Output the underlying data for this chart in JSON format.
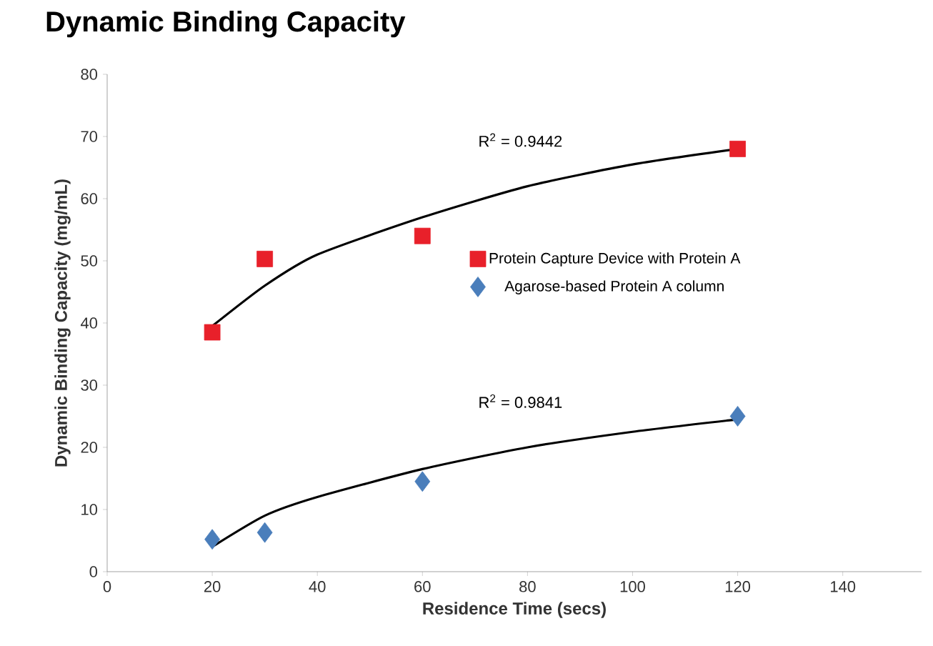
{
  "chart_data": {
    "type": "scatter",
    "title": "Dynamic Binding Capacity",
    "xlabel": "Residence Time (secs)",
    "ylabel": "Dynamic Binding Capacity (mg/mL)",
    "xlim": [
      0,
      155
    ],
    "xticks": [
      0,
      20,
      40,
      60,
      80,
      100,
      120,
      140
    ],
    "ylim": [
      0,
      80
    ],
    "yticks": [
      0,
      10,
      20,
      30,
      40,
      50,
      60,
      70,
      80
    ],
    "grid": false,
    "legend": "right",
    "series": [
      {
        "name": "Protein Capture Device with Protein A",
        "color": "#e8202a",
        "marker": "square",
        "x": [
          20,
          30,
          60,
          120
        ],
        "values": [
          38.5,
          50.3,
          54,
          68
        ]
      },
      {
        "name": "Agarose-based Protein A column",
        "color": "#4a7ebb",
        "marker": "diamond",
        "x": [
          20,
          30,
          60,
          120
        ],
        "values": [
          5.2,
          6.3,
          14.5,
          25
        ]
      },
      {
        "type": "line",
        "color": "#000000",
        "marker": "none",
        "x": [
          20,
          30,
          40,
          60,
          80,
          100,
          120
        ],
        "values": [
          39.5,
          46,
          51,
          57,
          62,
          65.5,
          68
        ]
      },
      {
        "type": "line",
        "color": "#000000",
        "marker": "none",
        "x": [
          20,
          30,
          40,
          60,
          80,
          100,
          120
        ],
        "values": [
          4,
          9,
          12,
          16.5,
          20,
          22.5,
          24.5
        ]
      }
    ],
    "annotations": [
      "R$^{2}$ = 0.9442",
      "R$^{2}$ = 0.9841"
    ]
  }
}
